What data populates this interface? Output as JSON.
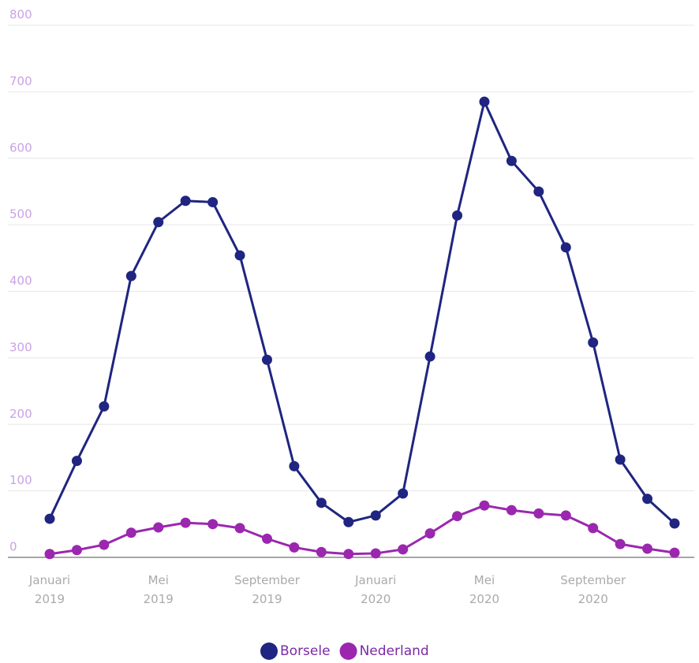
{
  "chart_data": {
    "type": "line",
    "categories": [
      "Januari 2019",
      null,
      null,
      null,
      "Mei 2019",
      null,
      null,
      null,
      "September 2019",
      null,
      null,
      null,
      "Januari 2020",
      null,
      null,
      null,
      "Mei 2020",
      null,
      null,
      null,
      "September 2020",
      null,
      null,
      null
    ],
    "series": [
      {
        "name": "Borsele",
        "color": "#1f2580",
        "values": [
          58,
          145,
          227,
          423,
          504,
          536,
          534,
          454,
          297,
          137,
          82,
          53,
          63,
          96,
          302,
          514,
          685,
          596,
          550,
          466,
          323,
          147,
          88,
          51
        ]
      },
      {
        "name": "Nederland",
        "color": "#9b27af",
        "values": [
          5,
          11,
          19,
          37,
          45,
          52,
          50,
          44,
          28,
          15,
          8,
          5,
          6,
          12,
          36,
          62,
          78,
          71,
          66,
          63,
          44,
          20,
          13,
          7
        ]
      }
    ],
    "ylim": [
      0,
      800
    ],
    "yticks": [
      0,
      100,
      200,
      300,
      400,
      500,
      600,
      700,
      800
    ],
    "grid": true,
    "legend": "bottom"
  }
}
